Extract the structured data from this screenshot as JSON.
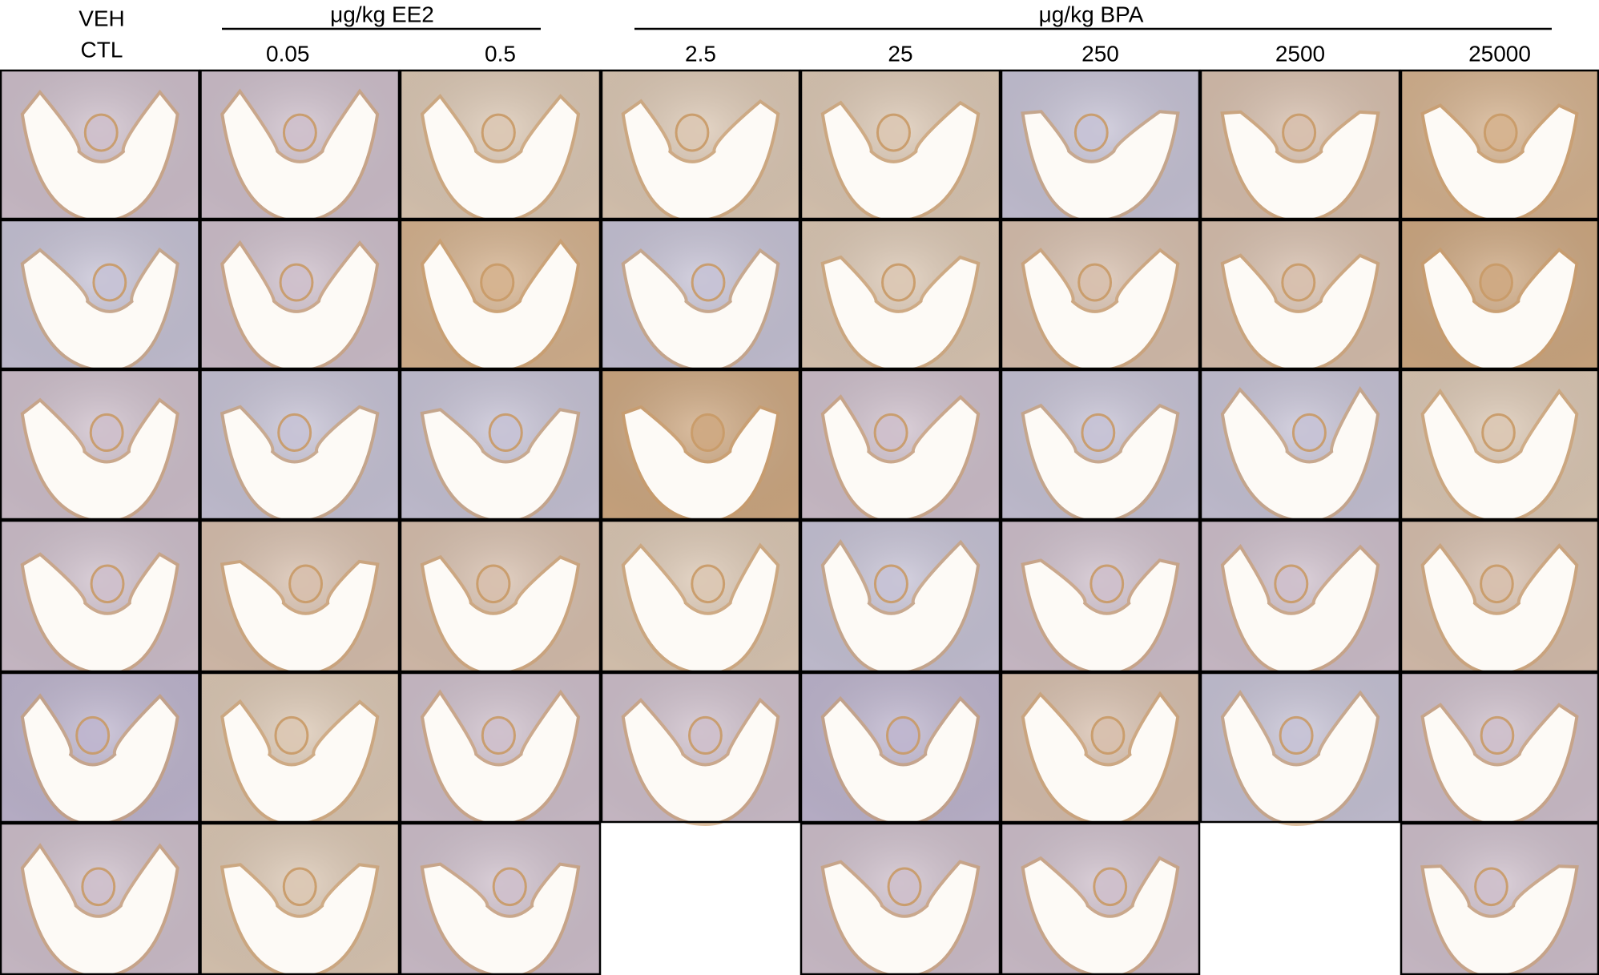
{
  "header": {
    "control": {
      "line1": "VEH",
      "line2": "CTL"
    },
    "groups": [
      {
        "label": "μg/kg EE2"
      },
      {
        "label": "μg/kg BPA"
      }
    ],
    "columns": [
      "0.05",
      "0.5",
      "2.5",
      "25",
      "250",
      "2500",
      "25000"
    ]
  }
}
